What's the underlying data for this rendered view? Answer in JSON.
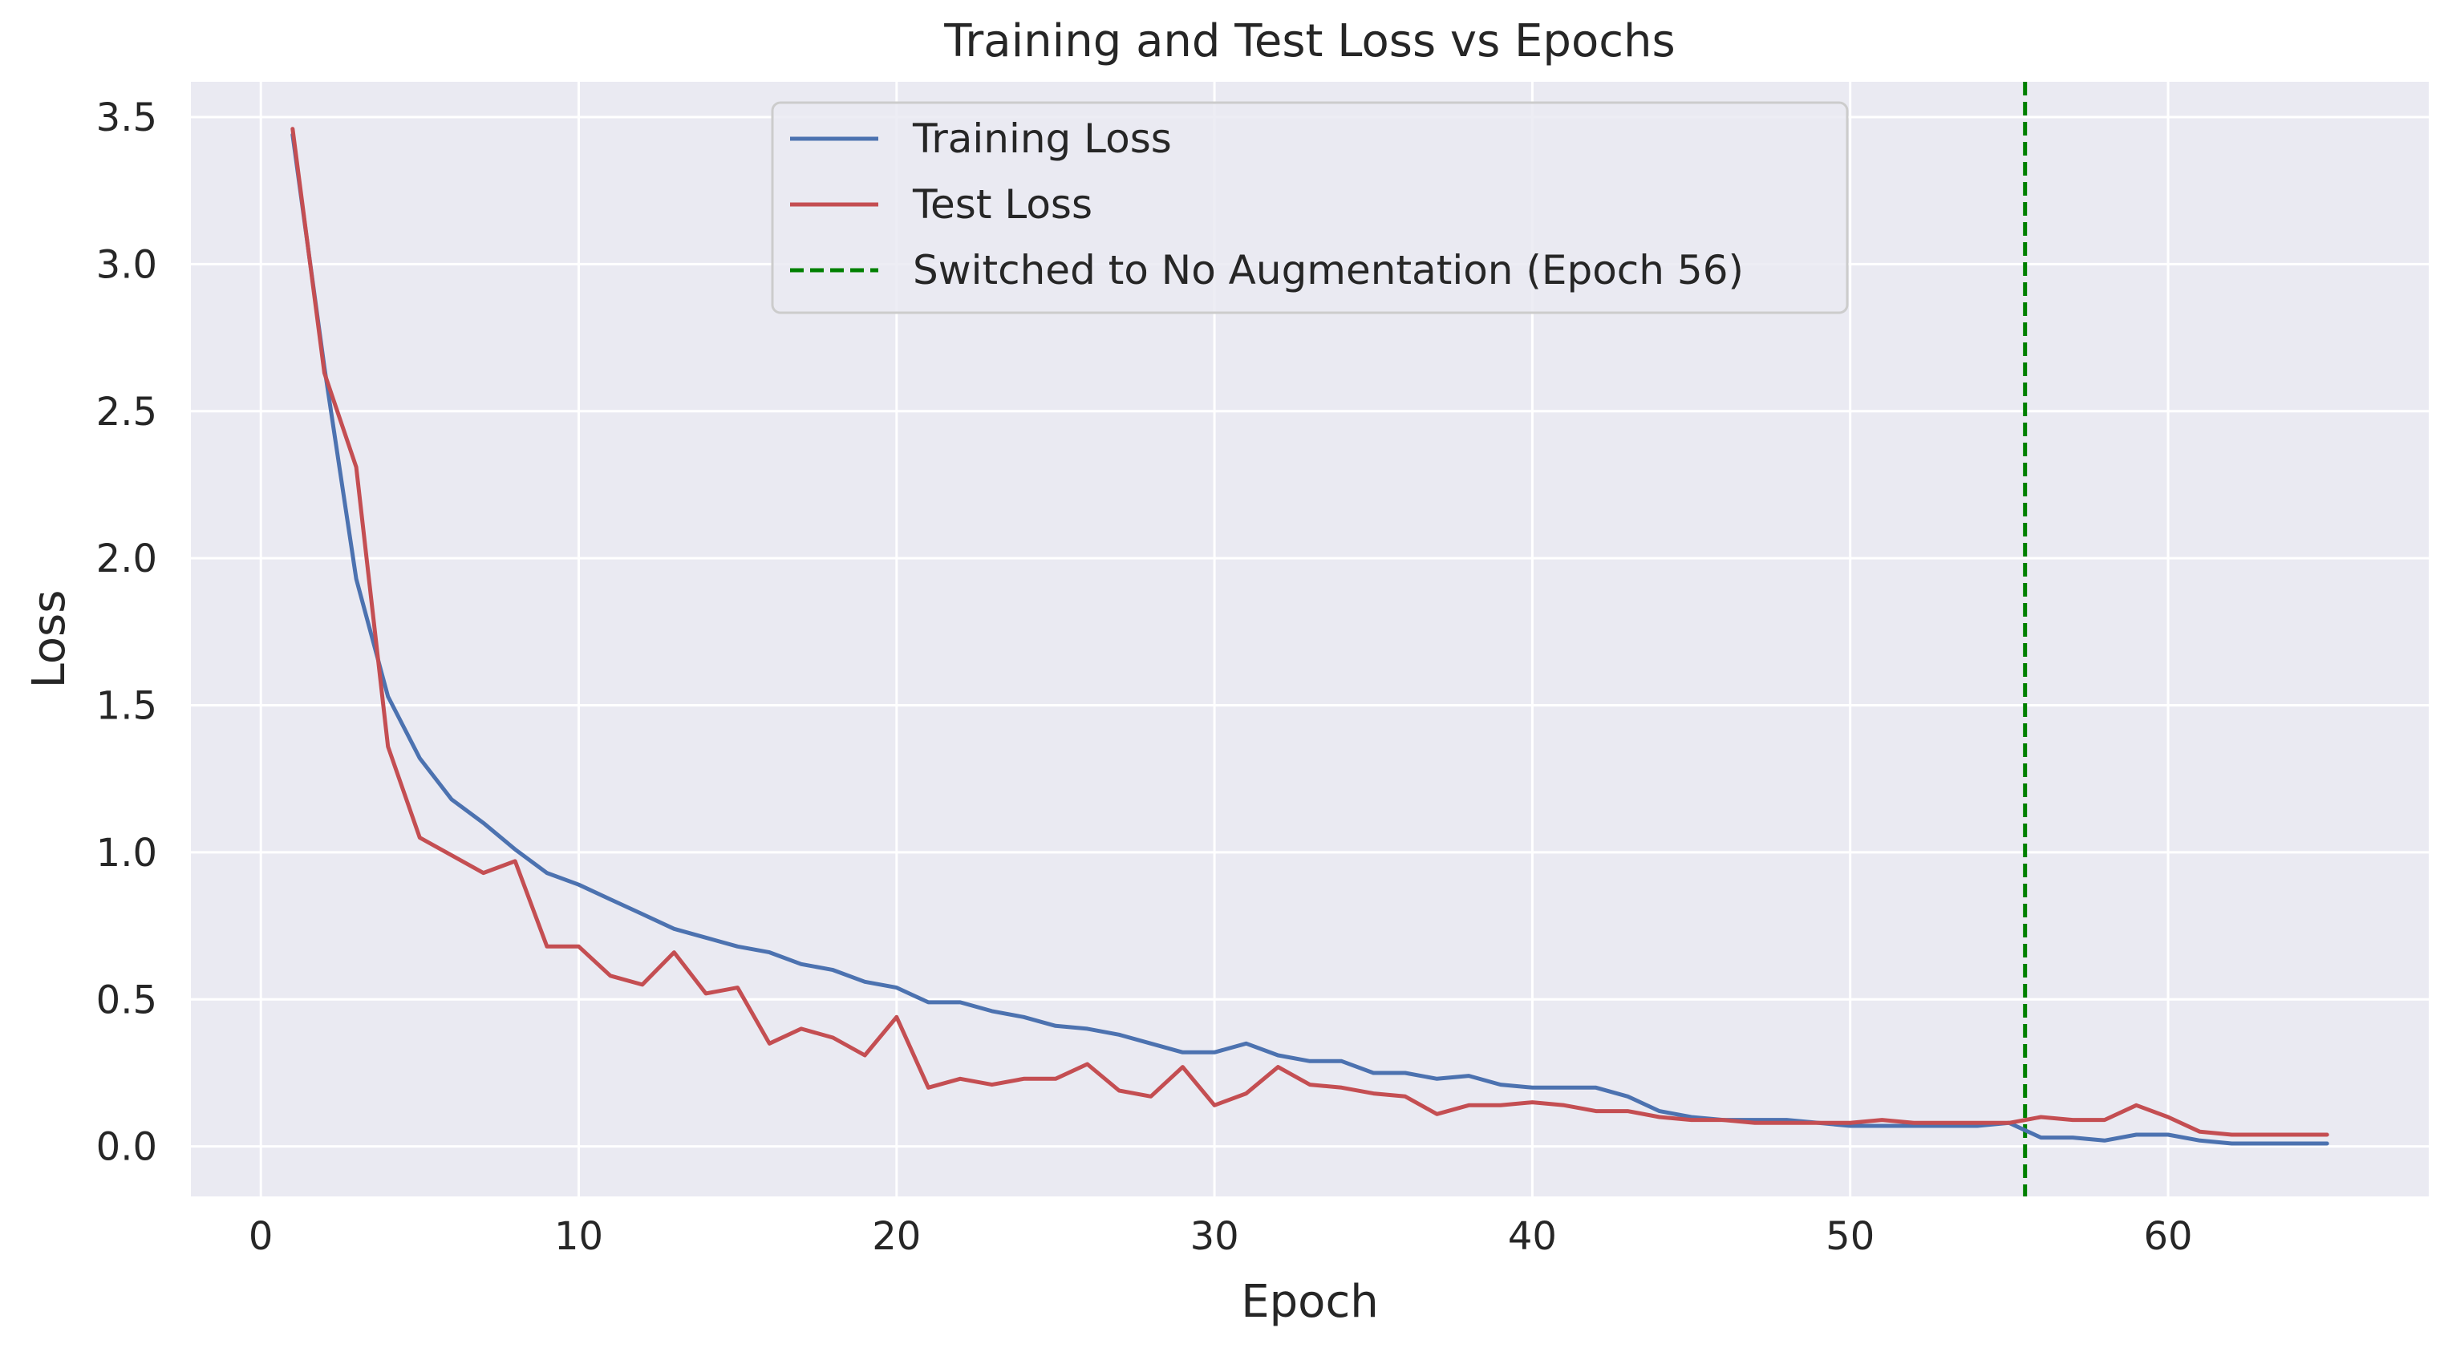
{
  "chart_data": {
    "type": "line",
    "title": "Training and Test Loss vs Epochs",
    "xlabel": "Epoch",
    "ylabel": "Loss",
    "xlim": [
      -2.2,
      68.2
    ],
    "ylim": [
      -0.17,
      3.62
    ],
    "xticks": [
      0,
      10,
      20,
      30,
      40,
      50,
      60
    ],
    "xtick_labels": [
      "0",
      "10",
      "20",
      "30",
      "40",
      "50",
      "60"
    ],
    "yticks": [
      0.0,
      0.5,
      1.0,
      1.5,
      2.0,
      2.5,
      3.0,
      3.5
    ],
    "ytick_labels": [
      "0.0",
      "0.5",
      "1.0",
      "1.5",
      "2.0",
      "2.5",
      "3.0",
      "3.5"
    ],
    "grid": true,
    "legend_position": "top-center",
    "x": [
      1,
      2,
      3,
      4,
      5,
      6,
      7,
      8,
      9,
      10,
      11,
      12,
      13,
      14,
      15,
      16,
      17,
      18,
      19,
      20,
      21,
      22,
      23,
      24,
      25,
      26,
      27,
      28,
      29,
      30,
      31,
      32,
      33,
      34,
      35,
      36,
      37,
      38,
      39,
      40,
      41,
      42,
      43,
      44,
      45,
      46,
      47,
      48,
      49,
      50,
      51,
      52,
      53,
      54,
      55,
      56,
      57,
      58,
      59,
      60,
      61,
      62,
      63,
      64,
      65
    ],
    "series": [
      {
        "name": "Training Loss",
        "color": "#4c72b0",
        "values": [
          3.44,
          2.65,
          1.93,
          1.53,
          1.32,
          1.18,
          1.1,
          1.01,
          0.93,
          0.89,
          0.84,
          0.79,
          0.74,
          0.71,
          0.68,
          0.66,
          0.62,
          0.6,
          0.56,
          0.54,
          0.49,
          0.49,
          0.46,
          0.44,
          0.41,
          0.4,
          0.38,
          0.35,
          0.32,
          0.32,
          0.35,
          0.31,
          0.29,
          0.29,
          0.25,
          0.25,
          0.23,
          0.24,
          0.21,
          0.2,
          0.2,
          0.2,
          0.17,
          0.12,
          0.1,
          0.09,
          0.09,
          0.09,
          0.08,
          0.07,
          0.07,
          0.07,
          0.07,
          0.07,
          0.08,
          0.03,
          0.03,
          0.02,
          0.04,
          0.04,
          0.02,
          0.01,
          0.01,
          0.01,
          0.01
        ]
      },
      {
        "name": "Test Loss",
        "color": "#c44e52",
        "values": [
          3.46,
          2.63,
          2.31,
          1.36,
          1.05,
          0.99,
          0.93,
          0.97,
          0.68,
          0.68,
          0.58,
          0.55,
          0.66,
          0.52,
          0.54,
          0.35,
          0.4,
          0.37,
          0.31,
          0.44,
          0.2,
          0.23,
          0.21,
          0.23,
          0.23,
          0.28,
          0.19,
          0.17,
          0.27,
          0.14,
          0.18,
          0.27,
          0.21,
          0.2,
          0.18,
          0.17,
          0.11,
          0.14,
          0.14,
          0.15,
          0.14,
          0.12,
          0.12,
          0.1,
          0.09,
          0.09,
          0.08,
          0.08,
          0.08,
          0.08,
          0.09,
          0.08,
          0.08,
          0.08,
          0.08,
          0.1,
          0.09,
          0.09,
          0.14,
          0.1,
          0.05,
          0.04,
          0.04,
          0.04,
          0.04
        ]
      }
    ],
    "vline": {
      "x": 55.5,
      "name": "Switched to No Augmentation (Epoch 56)",
      "color": "#008000",
      "style": "dashed"
    },
    "colors": {
      "plot_background": "#eaeaf2",
      "grid": "#ffffff",
      "text": "#262626"
    }
  }
}
